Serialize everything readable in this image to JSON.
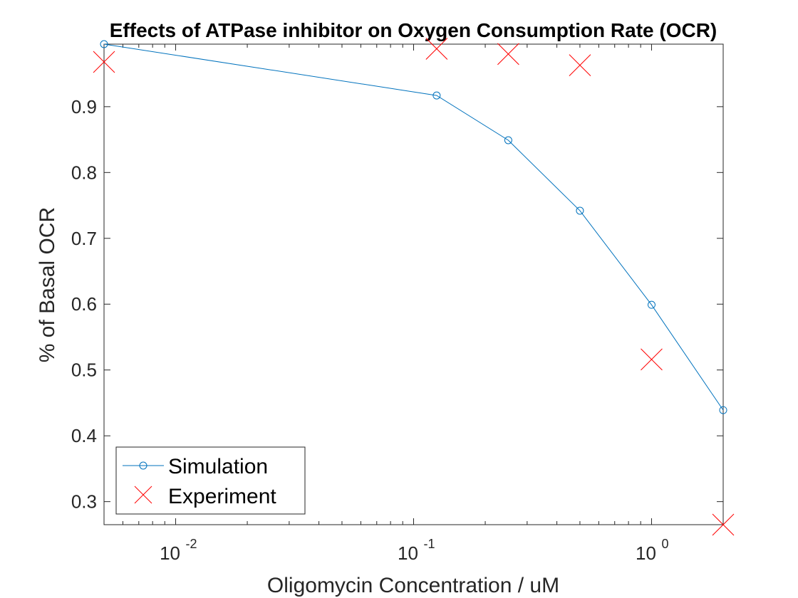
{
  "chart_data": {
    "type": "line",
    "title": "Effects of ATPase inhibitor on Oxygen Consumption Rate (OCR)",
    "xlabel": "Oligomycin Concentration / uM",
    "ylabel": "% of Basal OCR",
    "xscale": "log",
    "xlim": [
      0.005,
      2
    ],
    "ylim": [
      0.265,
      0.995
    ],
    "xticks": [
      {
        "value": 0.01,
        "base": "10",
        "exp": "-2"
      },
      {
        "value": 0.1,
        "base": "10",
        "exp": "-1"
      },
      {
        "value": 1,
        "base": "10",
        "exp": "0"
      }
    ],
    "yticks": [
      0.3,
      0.4,
      0.5,
      0.6,
      0.7,
      0.8,
      0.9
    ],
    "ytick_labels": [
      "0.3",
      "0.4",
      "0.5",
      "0.6",
      "0.7",
      "0.8",
      "0.9"
    ],
    "grid": false,
    "legend_position": "bottom-left",
    "series": [
      {
        "name": "Simulation",
        "marker": "circle",
        "line": "solid",
        "color": "#0072BD",
        "x": [
          0.005,
          0.125,
          0.25,
          0.5,
          1,
          2
        ],
        "y": [
          0.995,
          0.917,
          0.849,
          0.742,
          0.599,
          0.439
        ]
      },
      {
        "name": "Experiment",
        "marker": "x",
        "line": "none",
        "color": "#FF0000",
        "x": [
          0.005,
          0.125,
          0.25,
          0.5,
          1,
          2
        ],
        "y": [
          0.968,
          0.988,
          0.98,
          0.963,
          0.516,
          0.265
        ]
      }
    ]
  }
}
